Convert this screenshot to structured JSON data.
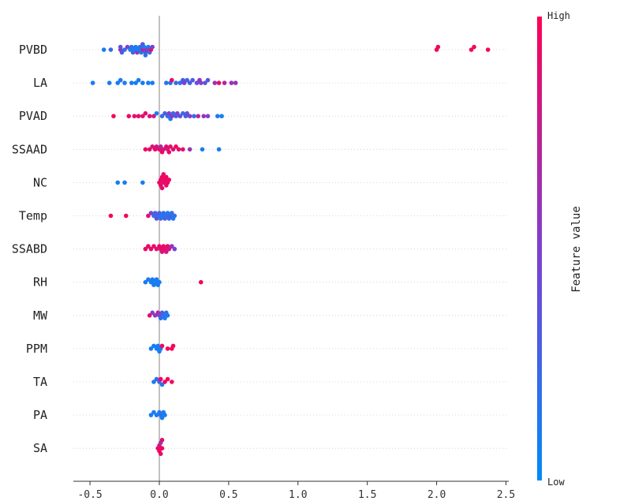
{
  "chart_data": {
    "type": "scatter",
    "subtype": "shap-beeswarm",
    "title": "",
    "xlabel": "",
    "ylabel": "",
    "xlim": [
      -0.62,
      2.52
    ],
    "x_ticks": [
      -0.5,
      0.0,
      0.5,
      1.0,
      1.5,
      2.0,
      2.5
    ],
    "x_tick_labels": [
      "-0.5",
      "0.0",
      "0.5",
      "1.0",
      "1.5",
      "2.0",
      "2.5"
    ],
    "grid": false,
    "zero_line": true,
    "colorbar": {
      "title": "Feature value",
      "high_label": "High",
      "low_label": "Low",
      "high_color": "#ff0052",
      "low_color": "#008bfb",
      "mid_color": "#7f3fd0",
      "placement": "right"
    },
    "features": [
      {
        "name": "PVBD",
        "points": [
          [
            -0.4,
            0.1
          ],
          [
            -0.35,
            0.2
          ],
          [
            -0.28,
            0.6
          ],
          [
            -0.28,
            0.4
          ],
          [
            -0.27,
            0.3
          ],
          [
            -0.25,
            0.2
          ],
          [
            -0.23,
            0.5
          ],
          [
            -0.21,
            0.1
          ],
          [
            -0.2,
            0.2
          ],
          [
            -0.19,
            0.3
          ],
          [
            -0.18,
            0.1
          ],
          [
            -0.17,
            0.1
          ],
          [
            -0.16,
            0.6
          ],
          [
            -0.15,
            0.1
          ],
          [
            -0.14,
            0.2
          ],
          [
            -0.13,
            0.1
          ],
          [
            -0.12,
            0.7
          ],
          [
            -0.12,
            0.4
          ],
          [
            -0.11,
            0.1
          ],
          [
            -0.1,
            0.3
          ],
          [
            -0.1,
            0.2
          ],
          [
            -0.09,
            0.6
          ],
          [
            -0.08,
            0.1
          ],
          [
            -0.07,
            0.2
          ],
          [
            -0.06,
            0.9
          ],
          [
            -0.05,
            0.5
          ],
          [
            2.0,
            0.95
          ],
          [
            2.01,
            0.95
          ],
          [
            2.25,
            0.95
          ],
          [
            2.27,
            0.95
          ],
          [
            2.37,
            0.95
          ]
        ]
      },
      {
        "name": "LA",
        "points": [
          [
            -0.48,
            0.1
          ],
          [
            -0.36,
            0.1
          ],
          [
            -0.3,
            0.1
          ],
          [
            -0.28,
            0.1
          ],
          [
            -0.25,
            0.1
          ],
          [
            -0.2,
            0.1
          ],
          [
            -0.17,
            0.1
          ],
          [
            -0.15,
            0.1
          ],
          [
            -0.12,
            0.1
          ],
          [
            -0.08,
            0.1
          ],
          [
            -0.05,
            0.1
          ],
          [
            0.05,
            0.15
          ],
          [
            0.08,
            0.15
          ],
          [
            0.09,
            0.9
          ],
          [
            0.12,
            0.2
          ],
          [
            0.15,
            0.2
          ],
          [
            0.17,
            0.3
          ],
          [
            0.18,
            0.5
          ],
          [
            0.2,
            0.25
          ],
          [
            0.22,
            0.3
          ],
          [
            0.24,
            0.3
          ],
          [
            0.27,
            0.4
          ],
          [
            0.29,
            0.6
          ],
          [
            0.3,
            0.5
          ],
          [
            0.33,
            0.4
          ],
          [
            0.35,
            0.3
          ],
          [
            0.4,
            0.6
          ],
          [
            0.43,
            0.9
          ],
          [
            0.47,
            0.7
          ],
          [
            0.52,
            0.6
          ],
          [
            0.55,
            0.6
          ]
        ]
      },
      {
        "name": "PVAD",
        "points": [
          [
            -0.33,
            0.95
          ],
          [
            -0.22,
            0.95
          ],
          [
            -0.18,
            0.9
          ],
          [
            -0.15,
            0.9
          ],
          [
            -0.12,
            0.85
          ],
          [
            -0.1,
            0.9
          ],
          [
            -0.07,
            0.85
          ],
          [
            -0.04,
            0.8
          ],
          [
            -0.02,
            0.1
          ],
          [
            0.02,
            0.2
          ],
          [
            0.04,
            0.3
          ],
          [
            0.06,
            0.2
          ],
          [
            0.07,
            0.5
          ],
          [
            0.08,
            0.1
          ],
          [
            0.09,
            0.6
          ],
          [
            0.1,
            0.2
          ],
          [
            0.12,
            0.3
          ],
          [
            0.13,
            0.5
          ],
          [
            0.15,
            0.4
          ],
          [
            0.17,
            0.2
          ],
          [
            0.19,
            0.3
          ],
          [
            0.2,
            0.4
          ],
          [
            0.22,
            0.5
          ],
          [
            0.25,
            0.2
          ],
          [
            0.28,
            0.7
          ],
          [
            0.32,
            0.6
          ],
          [
            0.35,
            0.5
          ],
          [
            0.42,
            0.1
          ],
          [
            0.45,
            0.1
          ]
        ]
      },
      {
        "name": "SSAAD",
        "points": [
          [
            -0.1,
            0.95
          ],
          [
            -0.07,
            0.9
          ],
          [
            -0.05,
            0.85
          ],
          [
            -0.03,
            0.95
          ],
          [
            -0.02,
            0.8
          ],
          [
            0.0,
            0.9
          ],
          [
            0.01,
            0.7
          ],
          [
            0.02,
            0.95
          ],
          [
            0.03,
            0.85
          ],
          [
            0.05,
            0.9
          ],
          [
            0.06,
            0.8
          ],
          [
            0.07,
            0.95
          ],
          [
            0.08,
            0.9
          ],
          [
            0.1,
            0.85
          ],
          [
            0.12,
            0.95
          ],
          [
            0.14,
            0.9
          ],
          [
            0.17,
            0.85
          ],
          [
            0.22,
            0.6
          ],
          [
            0.31,
            0.1
          ],
          [
            0.43,
            0.1
          ]
        ]
      },
      {
        "name": "NC",
        "points": [
          [
            -0.3,
            0.1
          ],
          [
            -0.25,
            0.1
          ],
          [
            -0.12,
            0.1
          ],
          [
            0.0,
            0.95
          ],
          [
            0.01,
            0.9
          ],
          [
            0.02,
            0.95
          ],
          [
            0.03,
            0.85
          ],
          [
            0.04,
            0.95
          ],
          [
            0.05,
            0.9
          ],
          [
            0.06,
            0.95
          ],
          [
            0.07,
            0.9
          ],
          [
            0.01,
            0.95
          ],
          [
            0.03,
            0.9
          ],
          [
            0.05,
            0.95
          ],
          [
            0.02,
            0.9
          ]
        ]
      },
      {
        "name": "Temp",
        "points": [
          [
            -0.35,
            0.95
          ],
          [
            -0.24,
            0.95
          ],
          [
            -0.08,
            0.9
          ],
          [
            -0.06,
            0.5
          ],
          [
            -0.04,
            0.2
          ],
          [
            -0.03,
            0.3
          ],
          [
            -0.02,
            0.4
          ],
          [
            -0.01,
            0.2
          ],
          [
            0.0,
            0.3
          ],
          [
            0.01,
            0.2
          ],
          [
            0.02,
            0.1
          ],
          [
            0.03,
            0.2
          ],
          [
            0.04,
            0.3
          ],
          [
            0.05,
            0.2
          ],
          [
            0.06,
            0.1
          ],
          [
            0.07,
            0.2
          ],
          [
            0.08,
            0.3
          ],
          [
            0.09,
            0.2
          ],
          [
            0.1,
            0.1
          ],
          [
            0.11,
            0.2
          ]
        ]
      },
      {
        "name": "SSABD",
        "points": [
          [
            -0.1,
            0.95
          ],
          [
            -0.08,
            0.9
          ],
          [
            -0.06,
            0.95
          ],
          [
            -0.04,
            0.9
          ],
          [
            -0.02,
            0.85
          ],
          [
            0.0,
            0.95
          ],
          [
            0.01,
            0.9
          ],
          [
            0.02,
            0.85
          ],
          [
            0.03,
            0.95
          ],
          [
            0.04,
            0.9
          ],
          [
            0.05,
            0.85
          ],
          [
            0.06,
            0.9
          ],
          [
            0.07,
            0.8
          ],
          [
            0.09,
            0.6
          ],
          [
            0.11,
            0.5
          ]
        ]
      },
      {
        "name": "RH",
        "points": [
          [
            -0.1,
            0.1
          ],
          [
            -0.08,
            0.1
          ],
          [
            -0.06,
            0.1
          ],
          [
            -0.05,
            0.1
          ],
          [
            -0.04,
            0.1
          ],
          [
            -0.03,
            0.1
          ],
          [
            -0.02,
            0.1
          ],
          [
            -0.01,
            0.1
          ],
          [
            0.0,
            0.1
          ],
          [
            0.3,
            0.95
          ]
        ]
      },
      {
        "name": "MW",
        "points": [
          [
            -0.07,
            0.9
          ],
          [
            -0.05,
            0.5
          ],
          [
            -0.03,
            0.6
          ],
          [
            -0.01,
            0.7
          ],
          [
            0.0,
            0.5
          ],
          [
            0.01,
            0.2
          ],
          [
            0.02,
            0.3
          ],
          [
            0.03,
            0.2
          ],
          [
            0.04,
            0.1
          ],
          [
            0.05,
            0.2
          ],
          [
            0.06,
            0.1
          ]
        ]
      },
      {
        "name": "PPM",
        "points": [
          [
            -0.06,
            0.1
          ],
          [
            -0.04,
            0.1
          ],
          [
            -0.02,
            0.1
          ],
          [
            -0.01,
            0.1
          ],
          [
            0.0,
            0.1
          ],
          [
            0.01,
            0.1
          ],
          [
            0.02,
            0.95
          ],
          [
            0.06,
            0.95
          ],
          [
            0.09,
            0.95
          ],
          [
            0.1,
            0.95
          ]
        ]
      },
      {
        "name": "TA",
        "points": [
          [
            -0.04,
            0.1
          ],
          [
            -0.02,
            0.2
          ],
          [
            0.0,
            0.3
          ],
          [
            0.01,
            0.95
          ],
          [
            0.02,
            0.1
          ],
          [
            0.04,
            0.95
          ],
          [
            0.06,
            0.95
          ],
          [
            0.09,
            0.95
          ]
        ]
      },
      {
        "name": "PA",
        "points": [
          [
            -0.06,
            0.1
          ],
          [
            -0.04,
            0.1
          ],
          [
            -0.02,
            0.1
          ],
          [
            0.0,
            0.1
          ],
          [
            0.01,
            0.2
          ],
          [
            0.02,
            0.1
          ],
          [
            0.03,
            0.1
          ],
          [
            0.04,
            0.1
          ]
        ]
      },
      {
        "name": "SA",
        "points": [
          [
            -0.01,
            0.95
          ],
          [
            0.0,
            0.9
          ],
          [
            0.01,
            0.6
          ],
          [
            0.02,
            0.95
          ],
          [
            0.01,
            0.9
          ],
          [
            0.0,
            0.95
          ],
          [
            0.02,
            0.9
          ]
        ]
      }
    ]
  }
}
